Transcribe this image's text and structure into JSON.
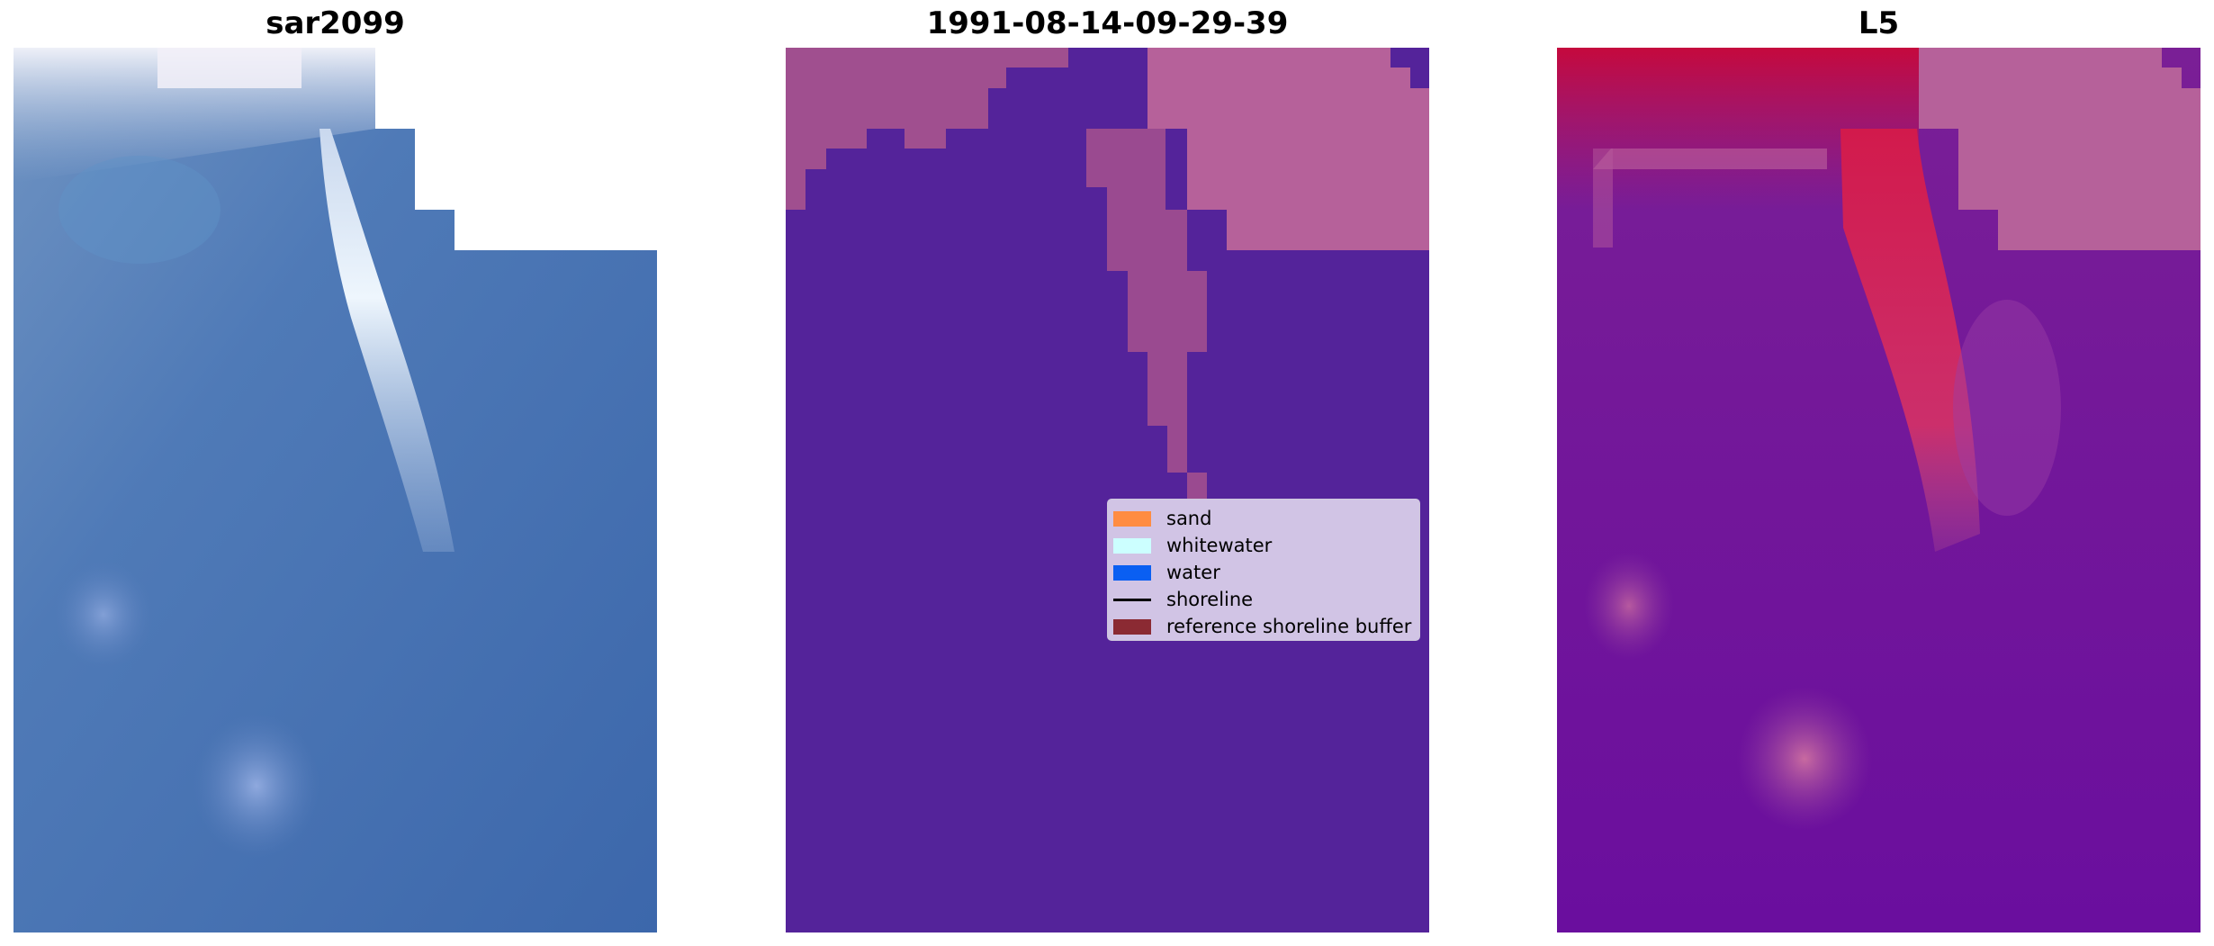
{
  "panels": [
    {
      "title": "sar2099",
      "image": "rgb-composite-image"
    },
    {
      "title": "1991-08-14-09-29-39",
      "image": "classified-image"
    },
    {
      "title": "L5",
      "image": "mndwi-index-image"
    }
  ],
  "legend": {
    "items": [
      {
        "label": "sand",
        "color": "#ff8c42",
        "kind": "patch"
      },
      {
        "label": "whitewater",
        "color": "#ccffff",
        "kind": "patch"
      },
      {
        "label": "water",
        "color": "#0a5ff2",
        "kind": "patch"
      },
      {
        "label": "shoreline",
        "color": "#000000",
        "kind": "line"
      },
      {
        "label": "reference shoreline buffer",
        "color": "#8b2a33",
        "kind": "patch"
      }
    ]
  },
  "colors": {
    "background": "#ffffff",
    "nodata": "#ffffff",
    "water_overlay": "#54239a",
    "buffer_overlay": "#a04f8f",
    "land_overlay": "#b6619a",
    "index_low": "#5a0a9e",
    "index_high": "#c4083e",
    "rgb_water": "#4a6fb0",
    "rgb_foam": "#e8f2fb"
  }
}
